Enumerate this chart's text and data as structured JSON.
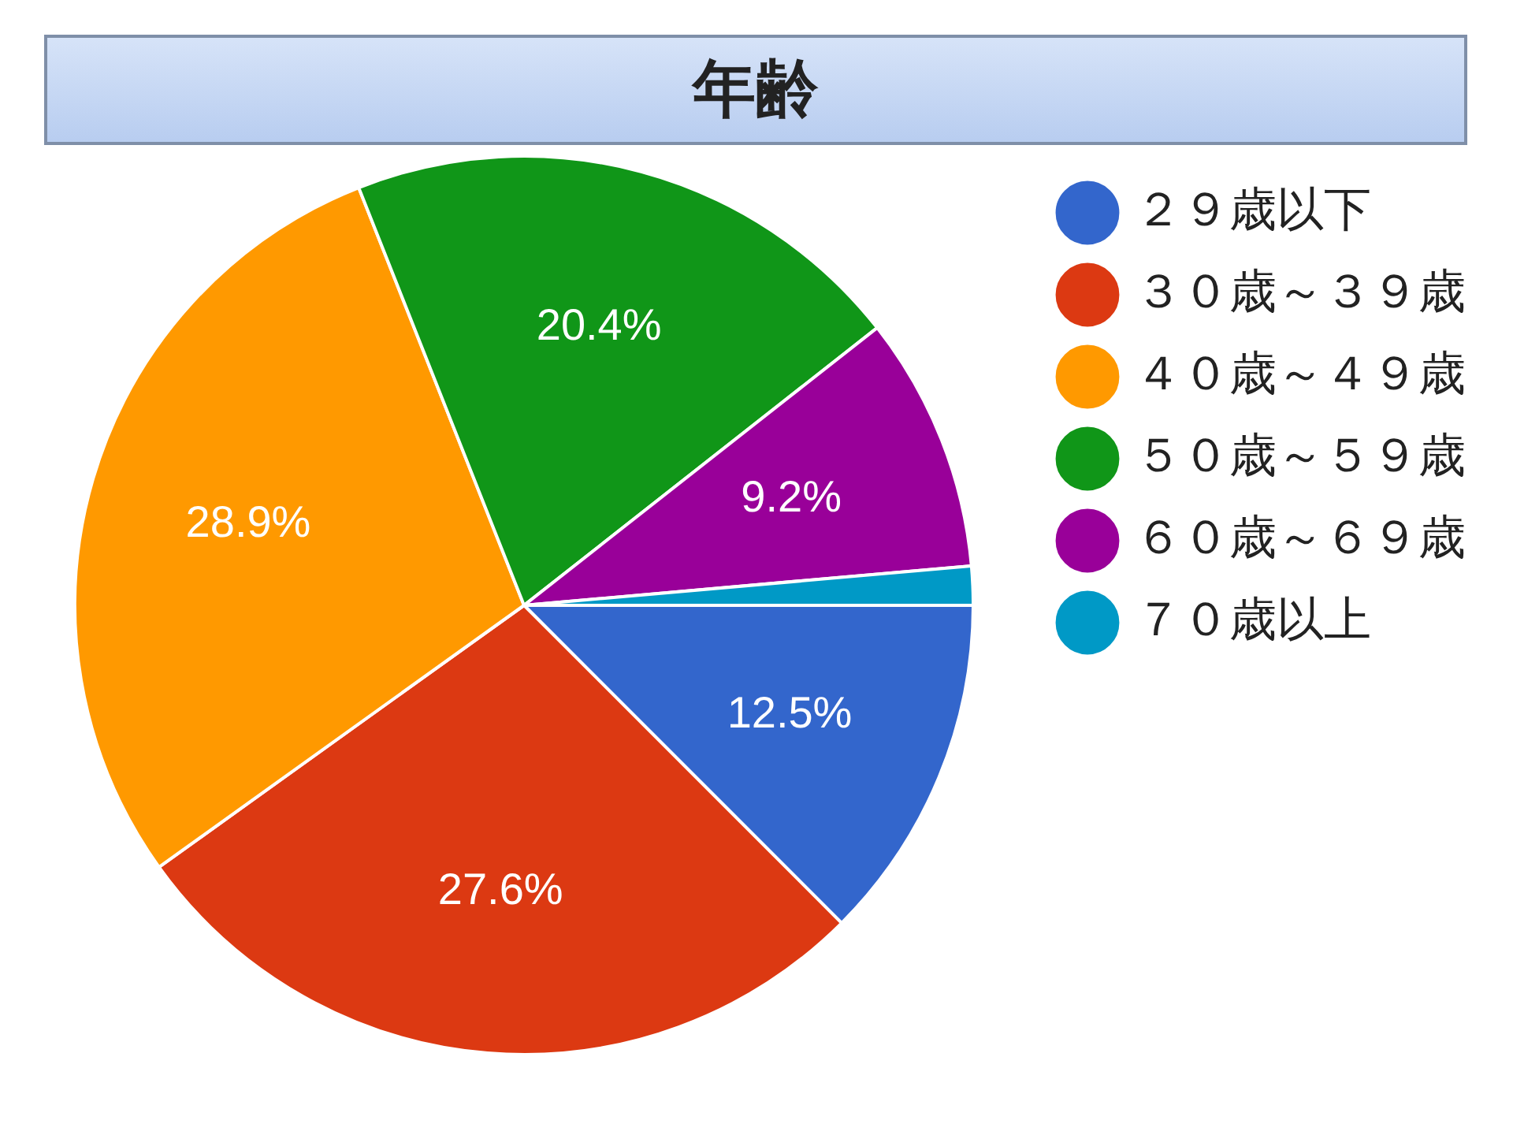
{
  "chart_data": {
    "type": "pie",
    "title": "年齢",
    "categories": [
      "２９歳以下",
      "３０歳～３９歳",
      "４０歳～４９歳",
      "５０歳～５９歳",
      "６０歳～６９歳",
      "７０歳以上"
    ],
    "values": [
      12.5,
      27.6,
      28.9,
      20.4,
      9.2,
      1.4
    ],
    "colors": [
      "#3366cc",
      "#dc3912",
      "#ff9900",
      "#109618",
      "#990099",
      "#0099c6"
    ],
    "value_labels": [
      "12.5%",
      "27.6%",
      "28.9%",
      "20.4%",
      "9.2%",
      null
    ],
    "legend": "right"
  }
}
